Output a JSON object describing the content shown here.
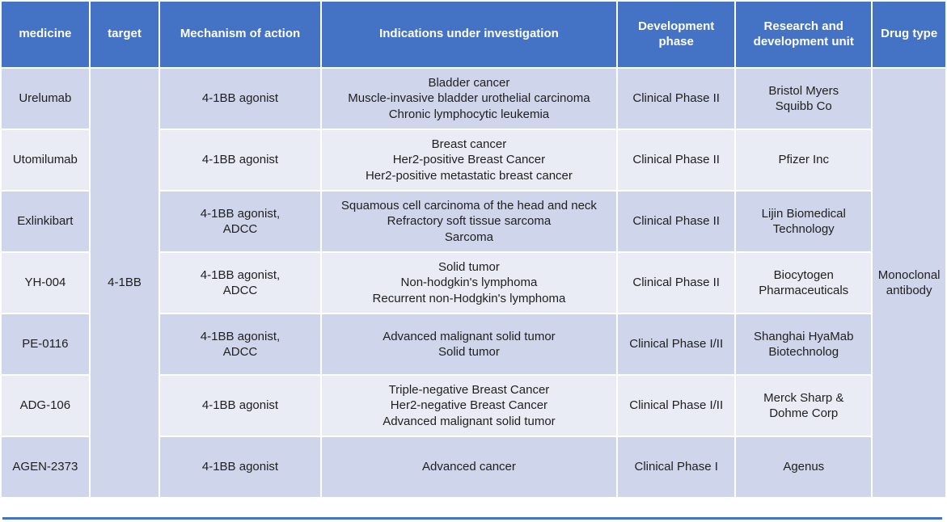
{
  "colors": {
    "header_bg": "#4472C4",
    "row_band_dark": "#CFD5EA",
    "row_band_light": "#E9EBF5",
    "header_text": "#FFFFFF",
    "body_text": "#1F1F1F",
    "bottom_rule": "#4472C4"
  },
  "table": {
    "headers": [
      "medicine",
      "target",
      "Mechanism of action",
      "Indications under investigation",
      "Development phase",
      "Research and development unit",
      "Drug type"
    ],
    "target_merged": "4-1BB",
    "drug_type_merged": "Monoclonal antibody",
    "rows": [
      {
        "medicine": "Urelumab",
        "mechanism": "4-1BB agonist",
        "indications": "Bladder cancer\nMuscle-invasive bladder urothelial carcinoma\nChronic lymphocytic leukemia",
        "phase": "Clinical Phase II",
        "unit": "Bristol Myers\nSquibb Co"
      },
      {
        "medicine": "Utomilumab",
        "mechanism": "4-1BB agonist",
        "indications": "Breast cancer\nHer2-positive Breast Cancer\nHer2-positive metastatic breast cancer",
        "phase": "Clinical Phase II",
        "unit": "Pfizer Inc"
      },
      {
        "medicine": "Exlinkibart",
        "mechanism": "4-1BB agonist,\nADCC",
        "indications": "Squamous cell carcinoma of the head and neck\nRefractory soft tissue sarcoma\nSarcoma",
        "phase": "Clinical Phase II",
        "unit": "Lijin Biomedical\nTechnology"
      },
      {
        "medicine": "YH-004",
        "mechanism": "4-1BB agonist,\nADCC",
        "indications": "Solid tumor\nNon-hodgkin's lymphoma\nRecurrent non-Hodgkin's lymphoma",
        "phase": "Clinical Phase II",
        "unit": "Biocytogen\nPharmaceuticals"
      },
      {
        "medicine": "PE-0116",
        "mechanism": "4-1BB agonist,\nADCC",
        "indications": "Advanced malignant solid tumor\nSolid tumor",
        "phase": "Clinical Phase I/II",
        "unit": "Shanghai HyaMab\nBiotechnolog"
      },
      {
        "medicine": "ADG-106",
        "mechanism": "4-1BB agonist",
        "indications": "Triple-negative Breast Cancer\nHer2-negative Breast Cancer\nAdvanced malignant solid tumor",
        "phase": "Clinical Phase I/II",
        "unit": "Merck Sharp &\nDohme Corp"
      },
      {
        "medicine": "AGEN-2373",
        "mechanism": "4-1BB agonist",
        "indications": "Advanced cancer",
        "phase": "Clinical Phase I",
        "unit": "Agenus"
      }
    ]
  }
}
